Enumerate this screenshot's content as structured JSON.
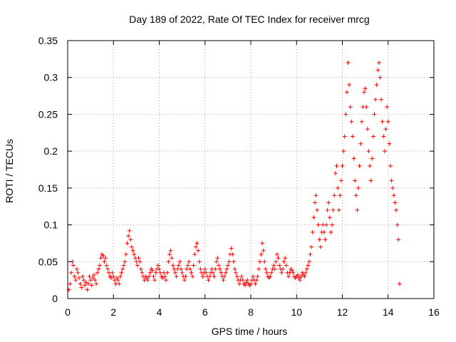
{
  "chart_data": {
    "type": "scatter",
    "title": "Day 189 of 2022, Rate Of TEC Index for receiver mrcg",
    "xlabel": "GPS time / hours",
    "ylabel": "ROTI / TECUs",
    "xlim": [
      0,
      16
    ],
    "ylim": [
      0,
      0.35
    ],
    "xticks": [
      0,
      2,
      4,
      6,
      8,
      10,
      12,
      14,
      16
    ],
    "yticks": [
      0,
      0.05,
      0.1,
      0.15,
      0.2,
      0.25,
      0.3,
      0.35
    ],
    "grid": true,
    "marker": "+",
    "marker_color": "#ff0000",
    "series": [
      {
        "name": "ROTI",
        "points": [
          [
            0.05,
            0.012
          ],
          [
            0.1,
            0.02
          ],
          [
            0.15,
            0.035
          ],
          [
            0.2,
            0.05
          ],
          [
            0.25,
            0.045
          ],
          [
            0.3,
            0.03
          ],
          [
            0.35,
            0.025
          ],
          [
            0.4,
            0.04
          ],
          [
            0.45,
            0.035
          ],
          [
            0.5,
            0.028
          ],
          [
            0.55,
            0.02
          ],
          [
            0.6,
            0.015
          ],
          [
            0.65,
            0.03
          ],
          [
            0.7,
            0.025
          ],
          [
            0.75,
            0.018
          ],
          [
            0.8,
            0.022
          ],
          [
            0.85,
            0.012
          ],
          [
            0.9,
            0.02
          ],
          [
            0.95,
            0.03
          ],
          [
            1.0,
            0.025
          ],
          [
            1.05,
            0.018
          ],
          [
            1.1,
            0.028
          ],
          [
            1.15,
            0.032
          ],
          [
            1.2,
            0.025
          ],
          [
            1.25,
            0.02
          ],
          [
            1.3,
            0.035
          ],
          [
            1.35,
            0.04
          ],
          [
            1.4,
            0.045
          ],
          [
            1.45,
            0.055
          ],
          [
            1.5,
            0.06
          ],
          [
            1.55,
            0.058
          ],
          [
            1.6,
            0.05
          ],
          [
            1.65,
            0.055
          ],
          [
            1.7,
            0.045
          ],
          [
            1.75,
            0.04
          ],
          [
            1.8,
            0.035
          ],
          [
            1.85,
            0.03
          ],
          [
            1.9,
            0.028
          ],
          [
            1.95,
            0.035
          ],
          [
            2.0,
            0.03
          ],
          [
            2.05,
            0.025
          ],
          [
            2.1,
            0.02
          ],
          [
            2.15,
            0.028
          ],
          [
            2.2,
            0.025
          ],
          [
            2.25,
            0.02
          ],
          [
            2.3,
            0.03
          ],
          [
            2.35,
            0.035
          ],
          [
            2.4,
            0.04
          ],
          [
            2.45,
            0.045
          ],
          [
            2.5,
            0.05
          ],
          [
            2.55,
            0.06
          ],
          [
            2.6,
            0.075
          ],
          [
            2.65,
            0.085
          ],
          [
            2.7,
            0.092
          ],
          [
            2.75,
            0.08
          ],
          [
            2.8,
            0.07
          ],
          [
            2.85,
            0.065
          ],
          [
            2.9,
            0.06
          ],
          [
            2.95,
            0.055
          ],
          [
            3.0,
            0.05
          ],
          [
            3.05,
            0.045
          ],
          [
            3.1,
            0.055
          ],
          [
            3.15,
            0.05
          ],
          [
            3.2,
            0.04
          ],
          [
            3.25,
            0.035
          ],
          [
            3.3,
            0.03
          ],
          [
            3.35,
            0.025
          ],
          [
            3.4,
            0.03
          ],
          [
            3.45,
            0.028
          ],
          [
            3.5,
            0.025
          ],
          [
            3.55,
            0.03
          ],
          [
            3.6,
            0.035
          ],
          [
            3.65,
            0.04
          ],
          [
            3.7,
            0.038
          ],
          [
            3.75,
            0.03
          ],
          [
            3.8,
            0.025
          ],
          [
            3.85,
            0.035
          ],
          [
            3.9,
            0.04
          ],
          [
            3.95,
            0.045
          ],
          [
            4.0,
            0.04
          ],
          [
            4.05,
            0.035
          ],
          [
            4.1,
            0.03
          ],
          [
            4.15,
            0.028
          ],
          [
            4.2,
            0.035
          ],
          [
            4.25,
            0.03
          ],
          [
            4.3,
            0.025
          ],
          [
            4.35,
            0.035
          ],
          [
            4.4,
            0.05
          ],
          [
            4.45,
            0.06
          ],
          [
            4.5,
            0.065
          ],
          [
            4.55,
            0.055
          ],
          [
            4.6,
            0.045
          ],
          [
            4.65,
            0.04
          ],
          [
            4.7,
            0.035
          ],
          [
            4.75,
            0.03
          ],
          [
            4.8,
            0.04
          ],
          [
            4.85,
            0.045
          ],
          [
            4.9,
            0.05
          ],
          [
            4.95,
            0.04
          ],
          [
            5.0,
            0.035
          ],
          [
            5.05,
            0.03
          ],
          [
            5.1,
            0.025
          ],
          [
            5.15,
            0.03
          ],
          [
            5.2,
            0.04
          ],
          [
            5.25,
            0.045
          ],
          [
            5.3,
            0.05
          ],
          [
            5.35,
            0.04
          ],
          [
            5.4,
            0.035
          ],
          [
            5.45,
            0.03
          ],
          [
            5.5,
            0.045
          ],
          [
            5.55,
            0.06
          ],
          [
            5.6,
            0.07
          ],
          [
            5.65,
            0.075
          ],
          [
            5.7,
            0.065
          ],
          [
            5.75,
            0.05
          ],
          [
            5.8,
            0.04
          ],
          [
            5.85,
            0.035
          ],
          [
            5.9,
            0.03
          ],
          [
            5.95,
            0.035
          ],
          [
            6.0,
            0.04
          ],
          [
            6.05,
            0.035
          ],
          [
            6.1,
            0.03
          ],
          [
            6.15,
            0.025
          ],
          [
            6.2,
            0.03
          ],
          [
            6.25,
            0.035
          ],
          [
            6.3,
            0.04
          ],
          [
            6.35,
            0.035
          ],
          [
            6.4,
            0.03
          ],
          [
            6.45,
            0.04
          ],
          [
            6.5,
            0.05
          ],
          [
            6.55,
            0.055
          ],
          [
            6.6,
            0.045
          ],
          [
            6.65,
            0.04
          ],
          [
            6.7,
            0.035
          ],
          [
            6.75,
            0.03
          ],
          [
            6.8,
            0.025
          ],
          [
            6.85,
            0.03
          ],
          [
            6.9,
            0.035
          ],
          [
            6.95,
            0.04
          ],
          [
            7.0,
            0.045
          ],
          [
            7.05,
            0.05
          ],
          [
            7.1,
            0.06
          ],
          [
            7.15,
            0.068
          ],
          [
            7.2,
            0.06
          ],
          [
            7.25,
            0.05
          ],
          [
            7.3,
            0.04
          ],
          [
            7.35,
            0.035
          ],
          [
            7.4,
            0.03
          ],
          [
            7.45,
            0.025
          ],
          [
            7.5,
            0.02
          ],
          [
            7.55,
            0.025
          ],
          [
            7.6,
            0.03
          ],
          [
            7.65,
            0.025
          ],
          [
            7.7,
            0.02
          ],
          [
            7.75,
            0.018
          ],
          [
            7.8,
            0.022
          ],
          [
            7.85,
            0.025
          ],
          [
            7.9,
            0.02
          ],
          [
            7.95,
            0.018
          ],
          [
            8.0,
            0.02
          ],
          [
            8.05,
            0.025
          ],
          [
            8.1,
            0.03
          ],
          [
            8.15,
            0.025
          ],
          [
            8.2,
            0.02
          ],
          [
            8.25,
            0.025
          ],
          [
            8.3,
            0.03
          ],
          [
            8.35,
            0.04
          ],
          [
            8.4,
            0.05
          ],
          [
            8.45,
            0.06
          ],
          [
            8.5,
            0.075
          ],
          [
            8.55,
            0.065
          ],
          [
            8.6,
            0.05
          ],
          [
            8.65,
            0.04
          ],
          [
            8.7,
            0.035
          ],
          [
            8.75,
            0.03
          ],
          [
            8.8,
            0.028
          ],
          [
            8.85,
            0.03
          ],
          [
            8.9,
            0.035
          ],
          [
            8.95,
            0.04
          ],
          [
            9.0,
            0.045
          ],
          [
            9.05,
            0.04
          ],
          [
            9.1,
            0.05
          ],
          [
            9.15,
            0.06
          ],
          [
            9.2,
            0.055
          ],
          [
            9.25,
            0.045
          ],
          [
            9.3,
            0.04
          ],
          [
            9.35,
            0.035
          ],
          [
            9.4,
            0.04
          ],
          [
            9.45,
            0.05
          ],
          [
            9.5,
            0.055
          ],
          [
            9.55,
            0.045
          ],
          [
            9.6,
            0.035
          ],
          [
            9.65,
            0.03
          ],
          [
            9.7,
            0.035
          ],
          [
            9.75,
            0.04
          ],
          [
            9.8,
            0.038
          ],
          [
            9.85,
            0.035
          ],
          [
            9.9,
            0.03
          ],
          [
            9.95,
            0.028
          ],
          [
            10.0,
            0.03
          ],
          [
            10.05,
            0.032
          ],
          [
            10.1,
            0.028
          ],
          [
            10.15,
            0.025
          ],
          [
            10.2,
            0.03
          ],
          [
            10.25,
            0.035
          ],
          [
            10.3,
            0.032
          ],
          [
            10.35,
            0.03
          ],
          [
            10.4,
            0.035
          ],
          [
            10.45,
            0.04
          ],
          [
            10.5,
            0.045
          ],
          [
            10.55,
            0.05
          ],
          [
            10.6,
            0.06
          ],
          [
            10.65,
            0.07
          ],
          [
            10.7,
            0.09
          ],
          [
            10.75,
            0.11
          ],
          [
            10.8,
            0.13
          ],
          [
            10.85,
            0.14
          ],
          [
            10.9,
            0.12
          ],
          [
            10.95,
            0.1
          ],
          [
            11.0,
            0.08
          ],
          [
            11.05,
            0.07
          ],
          [
            11.1,
            0.09
          ],
          [
            11.15,
            0.1
          ],
          [
            11.2,
            0.09
          ],
          [
            11.25,
            0.08
          ],
          [
            11.3,
            0.1
          ],
          [
            11.35,
            0.12
          ],
          [
            11.4,
            0.13
          ],
          [
            11.45,
            0.11
          ],
          [
            11.5,
            0.09
          ],
          [
            11.55,
            0.1
          ],
          [
            11.6,
            0.12
          ],
          [
            11.65,
            0.14
          ],
          [
            11.7,
            0.17
          ],
          [
            11.75,
            0.18
          ],
          [
            11.8,
            0.15
          ],
          [
            11.85,
            0.12
          ],
          [
            11.9,
            0.14
          ],
          [
            11.95,
            0.16
          ],
          [
            12.0,
            0.18
          ],
          [
            12.05,
            0.2
          ],
          [
            12.1,
            0.22
          ],
          [
            12.15,
            0.25
          ],
          [
            12.2,
            0.28
          ],
          [
            12.25,
            0.32
          ],
          [
            12.3,
            0.29
          ],
          [
            12.35,
            0.26
          ],
          [
            12.4,
            0.24
          ],
          [
            12.45,
            0.22
          ],
          [
            12.5,
            0.19
          ],
          [
            12.55,
            0.16
          ],
          [
            12.6,
            0.14
          ],
          [
            12.65,
            0.12
          ],
          [
            12.7,
            0.15
          ],
          [
            12.75,
            0.18
          ],
          [
            12.8,
            0.21
          ],
          [
            12.85,
            0.24
          ],
          [
            12.9,
            0.26
          ],
          [
            12.95,
            0.28
          ],
          [
            13.0,
            0.285
          ],
          [
            13.05,
            0.26
          ],
          [
            13.1,
            0.23
          ],
          [
            13.15,
            0.2
          ],
          [
            13.2,
            0.18
          ],
          [
            13.25,
            0.16
          ],
          [
            13.3,
            0.19
          ],
          [
            13.35,
            0.22
          ],
          [
            13.4,
            0.25
          ],
          [
            13.45,
            0.27
          ],
          [
            13.5,
            0.29
          ],
          [
            13.55,
            0.31
          ],
          [
            13.6,
            0.32
          ],
          [
            13.65,
            0.3
          ],
          [
            13.7,
            0.27
          ],
          [
            13.75,
            0.24
          ],
          [
            13.8,
            0.22
          ],
          [
            13.85,
            0.2
          ],
          [
            13.9,
            0.23
          ],
          [
            13.95,
            0.26
          ],
          [
            14.0,
            0.24
          ],
          [
            14.05,
            0.21
          ],
          [
            14.1,
            0.18
          ],
          [
            14.15,
            0.16
          ],
          [
            14.2,
            0.15
          ],
          [
            14.25,
            0.14
          ],
          [
            14.3,
            0.13
          ],
          [
            14.35,
            0.12
          ],
          [
            14.4,
            0.1
          ],
          [
            14.45,
            0.08
          ],
          [
            14.5,
            0.02
          ]
        ]
      }
    ]
  }
}
